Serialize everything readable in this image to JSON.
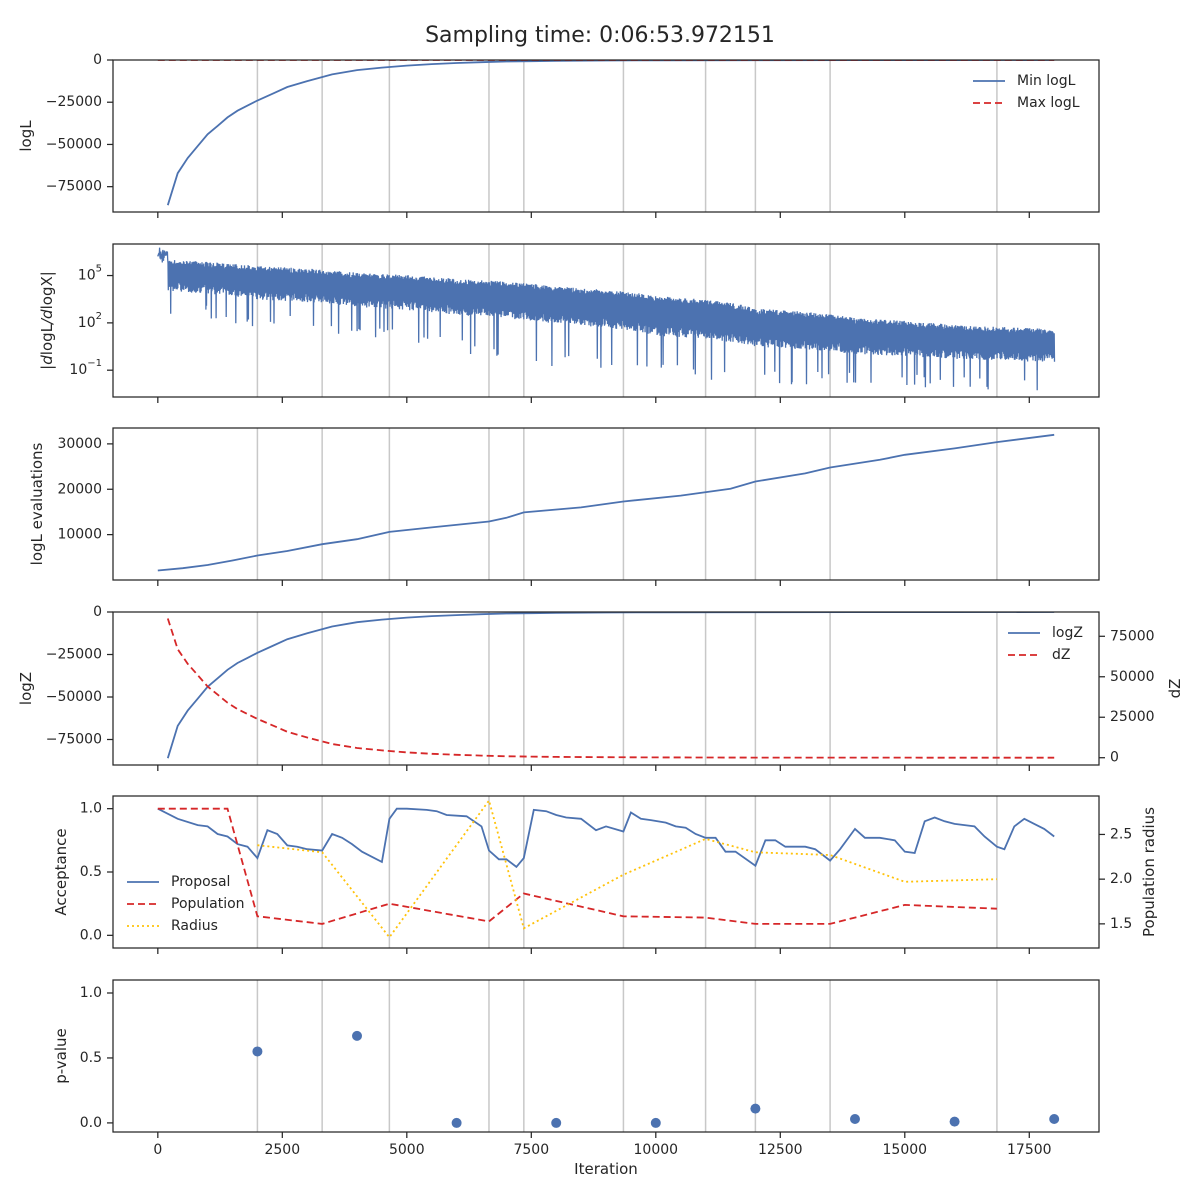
{
  "title": "Sampling time: 0:06:53.972151",
  "colors": {
    "blue": "#4c72b0",
    "red": "#d62728",
    "yellow": "#ffc20a",
    "vline": "#c8c8c8",
    "axis": "#262626"
  },
  "chart_data": [
    {
      "type": "line",
      "panel": "logL",
      "ylabel": "logL",
      "xlim": [
        -900,
        18900
      ],
      "ylim": [
        -90000,
        0
      ],
      "yticks": [
        0,
        -25000,
        -50000,
        -75000
      ],
      "ytick_labels": [
        "0",
        "−25000",
        "−50000",
        "−75000"
      ],
      "vlines": [
        2000,
        3300,
        4650,
        6650,
        7350,
        9350,
        11000,
        12000,
        13500,
        16850
      ],
      "legend": "top-right",
      "series": [
        {
          "name": "Min logL",
          "style": "solid",
          "color": "#4c72b0",
          "x": [
            200,
            400,
            600,
            800,
            1000,
            1200,
            1400,
            1600,
            1800,
            2000,
            2300,
            2600,
            3000,
            3500,
            4000,
            4500,
            5000,
            5500,
            6000,
            6500,
            7000,
            7500,
            8000,
            9000,
            10000,
            12000,
            14000,
            16000,
            18000
          ],
          "y": [
            -86000,
            -67000,
            -58000,
            -51000,
            -44000,
            -39000,
            -34000,
            -30000,
            -27000,
            -24000,
            -20000,
            -16000,
            -12500,
            -8500,
            -6000,
            -4500,
            -3300,
            -2400,
            -1800,
            -1300,
            -900,
            -700,
            -500,
            -300,
            -200,
            -100,
            -60,
            -30,
            -10
          ]
        },
        {
          "name": "Max logL",
          "style": "dashed",
          "color": "#d62728",
          "x": [
            0,
            18000
          ],
          "y": [
            0,
            0
          ]
        }
      ]
    },
    {
      "type": "line",
      "panel": "dlogL",
      "ylabel": "|dlogL/dlogX|",
      "yscale": "log",
      "xlim": [
        -900,
        18900
      ],
      "ylim": [
        0.002,
        10000000
      ],
      "yticks": [
        100000,
        100,
        0.1
      ],
      "ytick_labels": [
        "10^5",
        "10^2",
        "10^−1"
      ],
      "vlines": [
        2000,
        3300,
        4650,
        6650,
        7350,
        9350,
        11000,
        12000,
        13500,
        16850
      ],
      "series": [
        {
          "style": "noisy",
          "color": "#4c72b0",
          "x": [
            0,
            200,
            2000,
            4000,
            6000,
            8000,
            10000,
            12000,
            14000,
            16000,
            18000
          ],
          "y_top": [
            4000000,
            1000000,
            400000,
            150000,
            60000,
            20000,
            5000,
            800,
            200,
            70,
            40
          ],
          "y_floor": [
            30000,
            10000,
            3000,
            1000,
            300,
            80,
            15,
            3,
            1,
            0.5,
            0.3
          ],
          "y_spike_min": [
            1000,
            200,
            50,
            10,
            1,
            0.1,
            0.03,
            0.01,
            0.008,
            0.006,
            0.005
          ]
        }
      ]
    },
    {
      "type": "line",
      "panel": "evaluations",
      "ylabel": "logL evaluations",
      "xlim": [
        -900,
        18900
      ],
      "ylim": [
        0,
        33500
      ],
      "yticks": [
        10000,
        20000,
        30000
      ],
      "ytick_labels": [
        "10000",
        "20000",
        "30000"
      ],
      "vlines": [
        2000,
        3300,
        4650,
        6650,
        7350,
        9350,
        11000,
        12000,
        13500,
        16850
      ],
      "series": [
        {
          "style": "solid",
          "color": "#4c72b0",
          "x": [
            0,
            500,
            1000,
            1500,
            2000,
            2600,
            3300,
            4000,
            4650,
            5500,
            6650,
            7000,
            7350,
            8500,
            9350,
            10500,
            11500,
            12000,
            13000,
            13500,
            14500,
            15000,
            16000,
            16850,
            18000
          ],
          "y": [
            2100,
            2600,
            3300,
            4300,
            5400,
            6400,
            7900,
            9000,
            10600,
            11600,
            12900,
            13700,
            14900,
            16000,
            17300,
            18600,
            20100,
            21700,
            23500,
            24800,
            26500,
            27600,
            29000,
            30400,
            32000
          ]
        }
      ]
    },
    {
      "type": "line",
      "panel": "logZ",
      "ylabel": "logZ",
      "y2label": "dZ",
      "xlim": [
        -900,
        18900
      ],
      "ylim": [
        -90000,
        0
      ],
      "yticks": [
        0,
        -25000,
        -50000,
        -75000
      ],
      "ytick_labels": [
        "0",
        "−25000",
        "−50000",
        "−75000"
      ],
      "y2lim": [
        -4500,
        90000
      ],
      "y2ticks": [
        0,
        25000,
        50000,
        75000
      ],
      "y2tick_labels": [
        "0",
        "25000",
        "50000",
        "75000"
      ],
      "vlines": [
        2000,
        3300,
        4650,
        6650,
        7350,
        9350,
        11000,
        12000,
        13500,
        16850
      ],
      "legend": "top-right",
      "series": [
        {
          "name": "logZ",
          "style": "solid",
          "color": "#4c72b0",
          "axis": "left",
          "x": [
            200,
            400,
            600,
            800,
            1000,
            1200,
            1400,
            1600,
            1800,
            2000,
            2300,
            2600,
            3000,
            3500,
            4000,
            4500,
            5000,
            5500,
            6000,
            6500,
            7000,
            7500,
            8000,
            9000,
            10000,
            12000,
            14000,
            16000,
            18000
          ],
          "y": [
            -86000,
            -67000,
            -58000,
            -51000,
            -44000,
            -39000,
            -34000,
            -30000,
            -27000,
            -24000,
            -20000,
            -16000,
            -12500,
            -8500,
            -6000,
            -4500,
            -3300,
            -2400,
            -1800,
            -1300,
            -900,
            -700,
            -500,
            -300,
            -200,
            -100,
            -60,
            -30,
            -10
          ]
        },
        {
          "name": "dZ",
          "style": "dashed",
          "color": "#d62728",
          "axis": "right",
          "x": [
            200,
            400,
            600,
            800,
            1000,
            1200,
            1400,
            1600,
            1800,
            2000,
            2300,
            2600,
            3000,
            3500,
            4000,
            4500,
            5000,
            5500,
            6000,
            6500,
            7000,
            7500,
            8000,
            9000,
            10000,
            12000,
            14000,
            16000,
            18000
          ],
          "y": [
            86000,
            67000,
            58000,
            51000,
            44000,
            39000,
            34000,
            30000,
            27000,
            24000,
            20000,
            16000,
            12500,
            8500,
            6000,
            4500,
            3300,
            2400,
            1800,
            1300,
            900,
            700,
            500,
            300,
            200,
            100,
            60,
            30,
            10
          ]
        }
      ]
    },
    {
      "type": "line",
      "panel": "acceptance",
      "ylabel": "Acceptance",
      "y2label": "Population radius",
      "xlim": [
        -900,
        18900
      ],
      "ylim": [
        -0.1,
        1.1
      ],
      "yticks": [
        0.0,
        0.5,
        1.0
      ],
      "ytick_labels": [
        "0.0",
        "0.5",
        "1.0"
      ],
      "y2lim": [
        1.23,
        2.93
      ],
      "y2ticks": [
        1.5,
        2.0,
        2.5
      ],
      "y2tick_labels": [
        "1.5",
        "2.0",
        "2.5"
      ],
      "vlines": [
        2000,
        3300,
        4650,
        6650,
        7350,
        9350,
        11000,
        12000,
        13500,
        16850
      ],
      "legend": "center-left",
      "series": [
        {
          "name": "Proposal",
          "style": "solid",
          "color": "#4c72b0",
          "axis": "left",
          "x": [
            0,
            400,
            800,
            1000,
            1200,
            1400,
            1600,
            1800,
            2000,
            2200,
            2400,
            2600,
            2800,
            3000,
            3300,
            3500,
            3700,
            3900,
            4100,
            4300,
            4500,
            4650,
            4800,
            5000,
            5400,
            5600,
            5800,
            6200,
            6500,
            6650,
            6850,
            7000,
            7200,
            7350,
            7550,
            7800,
            8000,
            8200,
            8500,
            8800,
            9000,
            9350,
            9500,
            9700,
            9900,
            10200,
            10400,
            10600,
            10800,
            11000,
            11200,
            11400,
            11600,
            12000,
            12200,
            12400,
            12600,
            12800,
            13000,
            13200,
            13500,
            13700,
            14000,
            14200,
            14500,
            14800,
            15000,
            15200,
            15400,
            15600,
            15800,
            16000,
            16400,
            16600,
            16850,
            17000,
            17200,
            17400,
            17600,
            17800,
            18000
          ],
          "y": [
            1.0,
            0.92,
            0.87,
            0.86,
            0.8,
            0.78,
            0.72,
            0.7,
            0.61,
            0.83,
            0.8,
            0.71,
            0.7,
            0.68,
            0.67,
            0.8,
            0.77,
            0.72,
            0.66,
            0.62,
            0.58,
            0.92,
            1.0,
            1.0,
            0.99,
            0.98,
            0.95,
            0.94,
            0.86,
            0.67,
            0.6,
            0.6,
            0.54,
            0.61,
            0.99,
            0.98,
            0.95,
            0.93,
            0.92,
            0.83,
            0.86,
            0.82,
            0.97,
            0.92,
            0.91,
            0.89,
            0.86,
            0.85,
            0.8,
            0.77,
            0.77,
            0.66,
            0.66,
            0.55,
            0.75,
            0.75,
            0.7,
            0.7,
            0.7,
            0.68,
            0.59,
            0.68,
            0.84,
            0.77,
            0.77,
            0.75,
            0.66,
            0.65,
            0.9,
            0.93,
            0.9,
            0.88,
            0.86,
            0.78,
            0.7,
            0.68,
            0.86,
            0.92,
            0.88,
            0.84,
            0.78
          ],
          "_note": ""
        },
        {
          "name": "Population",
          "style": "dashed",
          "color": "#d62728",
          "axis": "left",
          "x": [
            0,
            1400,
            2000,
            3300,
            4650,
            6650,
            7350,
            9350,
            11000,
            12000,
            13500,
            15000,
            16850
          ],
          "y": [
            1.0,
            1.0,
            0.15,
            0.09,
            0.25,
            0.11,
            0.33,
            0.15,
            0.14,
            0.09,
            0.09,
            0.24,
            0.21
          ]
        },
        {
          "name": "Radius",
          "style": "dotted",
          "color": "#ffc20a",
          "axis": "right",
          "x": [
            2000,
            3300,
            4650,
            6650,
            7350,
            9350,
            11000,
            12000,
            13500,
            15000,
            16850
          ],
          "y": [
            2.38,
            2.3,
            1.35,
            2.88,
            1.45,
            2.05,
            2.45,
            2.3,
            2.27,
            1.97,
            2.0
          ]
        }
      ]
    },
    {
      "type": "scatter",
      "panel": "pvalue",
      "ylabel": "p-value",
      "xlabel": "Iteration",
      "xlim": [
        -900,
        18900
      ],
      "ylim": [
        -0.07,
        1.1
      ],
      "yticks": [
        0.0,
        0.5,
        1.0
      ],
      "ytick_labels": [
        "0.0",
        "0.5",
        "1.0"
      ],
      "xticks": [
        0,
        2500,
        5000,
        7500,
        10000,
        12500,
        15000,
        17500
      ],
      "xtick_labels": [
        "0",
        "2500",
        "5000",
        "7500",
        "10000",
        "12500",
        "15000",
        "17500"
      ],
      "vlines": [
        2000,
        3300,
        4650,
        6650,
        7350,
        9350,
        11000,
        12000,
        13500,
        16850
      ],
      "series": [
        {
          "style": "markers",
          "color": "#4c72b0",
          "x": [
            2000,
            4000,
            6000,
            8000,
            10000,
            12000,
            14000,
            16000,
            18000
          ],
          "y": [
            0.55,
            0.67,
            0.0,
            0.0,
            0.0,
            0.11,
            0.03,
            0.01,
            0.03
          ]
        }
      ]
    }
  ]
}
